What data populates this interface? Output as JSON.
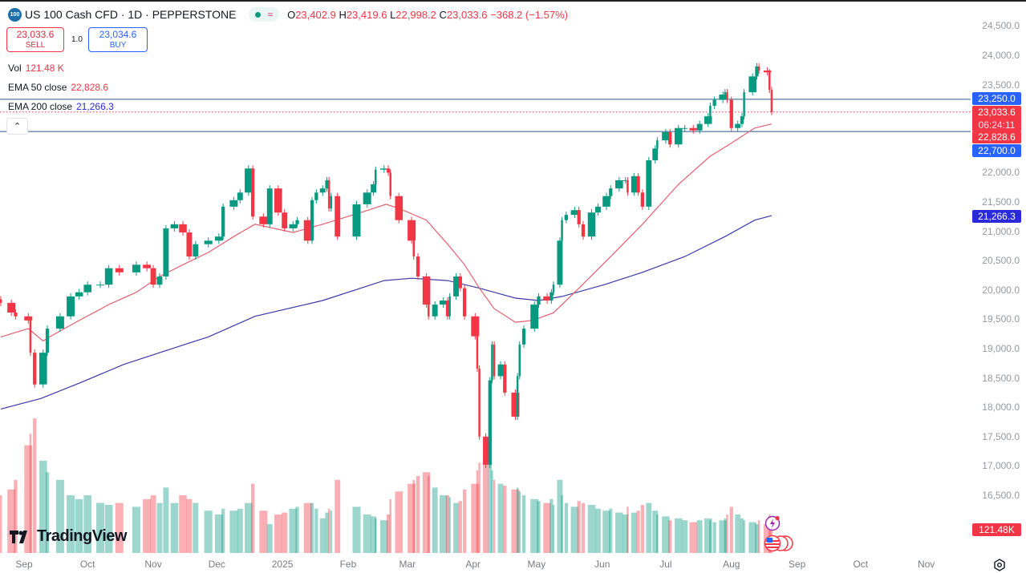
{
  "header": {
    "symbol_badge": "100",
    "title": "US 100 Cash CFD · 1D · PEPPERSTONE",
    "ohlc": {
      "o_label": "O",
      "o": "23,402.9",
      "h_label": "H",
      "h": "23,419.6",
      "l_label": "L",
      "l": "22,998.2",
      "c_label": "C",
      "c": "23,033.6",
      "change": "−368.2 (−1.57%)"
    }
  },
  "trade": {
    "sell_price": "23,033.6",
    "sell_label": "SELL",
    "quantity": "1.0",
    "buy_price": "23,034.6",
    "buy_label": "BUY"
  },
  "indicators": [
    {
      "name": "Vol",
      "value": "121.48 K",
      "color": "#f23645"
    },
    {
      "name": "EMA 50 close",
      "value": "22,828.6",
      "color": "#f23645"
    },
    {
      "name": "EMA 200 close",
      "value": "21,266.3",
      "color": "#2a2adb"
    }
  ],
  "price_axis": {
    "labels": [
      "24,500.0",
      "24,000.0",
      "23,500.0",
      "22,000.0",
      "21,500.0",
      "21,000.0",
      "20,500.0",
      "20,000.0",
      "19,500.0",
      "19,000.0",
      "18,500.0",
      "18,000.0",
      "17,500.0",
      "17,000.0",
      "16,500.0"
    ]
  },
  "price_tags": [
    {
      "text": "23,250.0",
      "price": 23250,
      "color": "#2962ff"
    },
    {
      "text": "23,033.6",
      "sub": "06:24:11",
      "price": 23033.6,
      "color": "#f23645"
    },
    {
      "text": "22,828.6",
      "price": 22828.6,
      "color": "#f23645"
    },
    {
      "text": "22,700.0",
      "price": 22700,
      "color": "#2962ff"
    },
    {
      "text": "21,266.3",
      "price": 21266.3,
      "color": "#2a2adb"
    },
    {
      "text": "121.48K",
      "color": "#f23645"
    }
  ],
  "time_axis": [
    {
      "label": "Sep",
      "date": "2024-09-01"
    },
    {
      "label": "Oct",
      "date": "2024-10-01"
    },
    {
      "label": "Nov",
      "date": "2024-11-01"
    },
    {
      "label": "Dec",
      "date": "2024-12-01"
    },
    {
      "label": "2025",
      "date": "2025-01-01"
    },
    {
      "label": "Feb",
      "date": "2025-02-01"
    },
    {
      "label": "Mar",
      "date": "2025-03-01"
    },
    {
      "label": "Apr",
      "date": "2025-04-01"
    },
    {
      "label": "May",
      "date": "2025-05-01"
    },
    {
      "label": "Jun",
      "date": "2025-06-01"
    },
    {
      "label": "Jul",
      "date": "2025-07-01"
    },
    {
      "label": "Aug",
      "date": "2025-08-01"
    },
    {
      "label": "Sep",
      "date": "2025-09-01"
    },
    {
      "label": "Oct",
      "date": "2025-10-01"
    },
    {
      "label": "Nov",
      "date": "2025-11-01"
    }
  ],
  "branding": {
    "logo_text": "TradingView"
  },
  "colors": {
    "up": "#089981",
    "down": "#f23645",
    "ema50": "#e06070",
    "ema200": "#3a3aa8",
    "hline": "#2a5a8a"
  },
  "chart_data": {
    "type": "candlestick",
    "title": "US 100 Cash CFD · 1D · PEPPERSTONE",
    "ylim": [
      16000,
      24700
    ],
    "y_scale": "linear",
    "grid": false,
    "horizontal_lines": [
      23250,
      22700
    ],
    "last_price_line": 23033.6,
    "closes_and_volume_k": [
      [
        "2024-08-21",
        19780,
        300
      ],
      [
        "2024-08-26",
        19615,
        330
      ],
      [
        "2024-08-28",
        19550,
        380
      ],
      [
        "2024-09-03",
        19480,
        560
      ],
      [
        "2024-09-04",
        18930,
        620
      ],
      [
        "2024-09-06",
        18390,
        700
      ],
      [
        "2024-09-10",
        18930,
        480
      ],
      [
        "2024-09-12",
        19340,
        420
      ],
      [
        "2024-09-18",
        19550,
        380
      ],
      [
        "2024-09-23",
        19890,
        300
      ],
      [
        "2024-09-27",
        19960,
        280
      ],
      [
        "2024-10-01",
        20090,
        300
      ],
      [
        "2024-10-07",
        20090,
        260
      ],
      [
        "2024-10-11",
        20370,
        250
      ],
      [
        "2024-10-16",
        20300,
        260
      ],
      [
        "2024-10-24",
        20430,
        240
      ],
      [
        "2024-10-29",
        20370,
        280
      ],
      [
        "2024-11-01",
        20090,
        300
      ],
      [
        "2024-11-04",
        20230,
        260
      ],
      [
        "2024-11-07",
        21050,
        340
      ],
      [
        "2024-11-11",
        21120,
        260
      ],
      [
        "2024-11-15",
        20980,
        300
      ],
      [
        "2024-11-18",
        20570,
        280
      ],
      [
        "2024-11-21",
        20780,
        260
      ],
      [
        "2024-11-27",
        20840,
        220
      ],
      [
        "2024-12-02",
        20910,
        200
      ],
      [
        "2024-12-04",
        21420,
        230
      ],
      [
        "2024-12-09",
        21530,
        220
      ],
      [
        "2024-12-12",
        21660,
        230
      ],
      [
        "2024-12-16",
        22070,
        260
      ],
      [
        "2024-12-18",
        21250,
        360
      ],
      [
        "2024-12-23",
        21120,
        220
      ],
      [
        "2024-12-26",
        21730,
        150
      ],
      [
        "2024-12-30",
        21320,
        200
      ],
      [
        "2025-01-02",
        21050,
        210
      ],
      [
        "2025-01-06",
        21120,
        230
      ],
      [
        "2025-01-08",
        21190,
        240
      ],
      [
        "2025-01-13",
        20840,
        260
      ],
      [
        "2025-01-15",
        21530,
        260
      ],
      [
        "2025-01-17",
        21660,
        230
      ],
      [
        "2025-01-20",
        21730,
        180
      ],
      [
        "2025-01-22",
        21870,
        210
      ],
      [
        "2025-01-23",
        21390,
        230
      ],
      [
        "2025-01-24",
        21600,
        220
      ],
      [
        "2025-01-27",
        20910,
        380
      ],
      [
        "2025-02-05",
        21460,
        240
      ],
      [
        "2025-02-10",
        21660,
        200
      ],
      [
        "2025-02-13",
        21800,
        190
      ],
      [
        "2025-02-14",
        22050,
        180
      ],
      [
        "2025-02-18",
        22070,
        170
      ],
      [
        "2025-02-20",
        22000,
        200
      ],
      [
        "2025-02-21",
        21600,
        280
      ],
      [
        "2025-02-25",
        21190,
        320
      ],
      [
        "2025-03-03",
        20840,
        360
      ],
      [
        "2025-03-04",
        20570,
        380
      ],
      [
        "2025-03-06",
        20230,
        400
      ],
      [
        "2025-03-10",
        19750,
        420
      ],
      [
        "2025-03-11",
        19550,
        400
      ],
      [
        "2025-03-14",
        19750,
        340
      ],
      [
        "2025-03-18",
        19820,
        300
      ],
      [
        "2025-03-20",
        19550,
        300
      ],
      [
        "2025-03-21",
        19890,
        290
      ],
      [
        "2025-03-24",
        20230,
        260
      ],
      [
        "2025-03-26",
        20030,
        270
      ],
      [
        "2025-03-28",
        19550,
        330
      ],
      [
        "2025-04-02",
        19210,
        360
      ],
      [
        "2025-04-03",
        18660,
        430
      ],
      [
        "2025-04-04",
        17500,
        470
      ],
      [
        "2025-04-07",
        17020,
        500
      ],
      [
        "2025-04-09",
        18460,
        480
      ],
      [
        "2025-04-10",
        19070,
        430
      ],
      [
        "2025-04-11",
        18530,
        380
      ],
      [
        "2025-04-14",
        18730,
        360
      ],
      [
        "2025-04-16",
        18250,
        350
      ],
      [
        "2025-04-21",
        17840,
        330
      ],
      [
        "2025-04-22",
        18530,
        340
      ],
      [
        "2025-04-23",
        19070,
        320
      ],
      [
        "2025-04-25",
        19340,
        300
      ],
      [
        "2025-04-30",
        19750,
        280
      ],
      [
        "2025-05-02",
        19890,
        270
      ],
      [
        "2025-05-06",
        19820,
        260
      ],
      [
        "2025-05-08",
        19960,
        280
      ],
      [
        "2025-05-09",
        20090,
        250
      ],
      [
        "2025-05-12",
        20840,
        380
      ],
      [
        "2025-05-13",
        21190,
        300
      ],
      [
        "2025-05-15",
        21280,
        260
      ],
      [
        "2025-05-19",
        21360,
        240
      ],
      [
        "2025-05-21",
        21120,
        270
      ],
      [
        "2025-05-23",
        20910,
        260
      ],
      [
        "2025-05-27",
        21320,
        250
      ],
      [
        "2025-05-30",
        21420,
        230
      ],
      [
        "2025-06-03",
        21600,
        220
      ],
      [
        "2025-06-05",
        21730,
        230
      ],
      [
        "2025-06-09",
        21870,
        210
      ],
      [
        "2025-06-12",
        21870,
        200
      ],
      [
        "2025-06-13",
        21660,
        240
      ],
      [
        "2025-06-16",
        21940,
        210
      ],
      [
        "2025-06-18",
        21660,
        220
      ],
      [
        "2025-06-20",
        21420,
        250
      ],
      [
        "2025-06-23",
        22210,
        260
      ],
      [
        "2025-06-26",
        22410,
        220
      ],
      [
        "2025-06-27",
        22550,
        200
      ],
      [
        "2025-07-01",
        22690,
        190
      ],
      [
        "2025-07-03",
        22480,
        170
      ],
      [
        "2025-07-07",
        22760,
        180
      ],
      [
        "2025-07-10",
        22760,
        170
      ],
      [
        "2025-07-14",
        22720,
        160
      ],
      [
        "2025-07-17",
        22830,
        170
      ],
      [
        "2025-07-21",
        22960,
        180
      ],
      [
        "2025-07-22",
        23140,
        170
      ],
      [
        "2025-07-24",
        23240,
        160
      ],
      [
        "2025-07-28",
        23330,
        170
      ],
      [
        "2025-07-29",
        23370,
        180
      ],
      [
        "2025-07-30",
        23240,
        200
      ],
      [
        "2025-08-01",
        22760,
        240
      ],
      [
        "2025-08-04",
        22830,
        200
      ],
      [
        "2025-08-06",
        22960,
        180
      ],
      [
        "2025-08-07",
        23370,
        170
      ],
      [
        "2025-08-11",
        23640,
        160
      ],
      [
        "2025-08-13",
        23810,
        150
      ],
      [
        "2025-08-14",
        23740,
        170
      ],
      [
        "2025-08-18",
        23710,
        150
      ],
      [
        "2025-08-19",
        23410,
        200
      ],
      [
        "2025-08-20",
        23033.6,
        121.48
      ]
    ],
    "ema50": [
      [
        "2024-08-21",
        19200
      ],
      [
        "2024-09-03",
        19340
      ],
      [
        "2024-09-10",
        19130
      ],
      [
        "2024-09-13",
        19200
      ],
      [
        "2024-09-27",
        19480
      ],
      [
        "2024-10-11",
        19750
      ],
      [
        "2024-10-24",
        19960
      ],
      [
        "2024-11-04",
        20230
      ],
      [
        "2024-11-15",
        20430
      ],
      [
        "2024-11-27",
        20640
      ],
      [
        "2024-12-09",
        20910
      ],
      [
        "2024-12-19",
        21120
      ],
      [
        "2025-01-06",
        20980
      ],
      [
        "2025-01-20",
        21120
      ],
      [
        "2025-02-07",
        21320
      ],
      [
        "2025-02-19",
        21460
      ],
      [
        "2025-02-25",
        21390
      ],
      [
        "2025-03-10",
        21190
      ],
      [
        "2025-03-20",
        20780
      ],
      [
        "2025-03-28",
        20430
      ],
      [
        "2025-04-04",
        20030
      ],
      [
        "2025-04-11",
        19680
      ],
      [
        "2025-04-21",
        19450
      ],
      [
        "2025-04-29",
        19480
      ],
      [
        "2025-05-09",
        19610
      ],
      [
        "2025-05-21",
        20030
      ],
      [
        "2025-06-05",
        20570
      ],
      [
        "2025-06-20",
        21120
      ],
      [
        "2025-07-07",
        21800
      ],
      [
        "2025-07-22",
        22280
      ],
      [
        "2025-07-31",
        22480
      ],
      [
        "2025-08-12",
        22760
      ],
      [
        "2025-08-20",
        22828.6
      ]
    ],
    "ema200": [
      [
        "2024-08-21",
        17970
      ],
      [
        "2024-09-09",
        18150
      ],
      [
        "2024-09-27",
        18410
      ],
      [
        "2024-10-18",
        18730
      ],
      [
        "2024-11-04",
        18930
      ],
      [
        "2024-11-27",
        19200
      ],
      [
        "2024-12-19",
        19550
      ],
      [
        "2025-01-20",
        19820
      ],
      [
        "2025-02-07",
        20030
      ],
      [
        "2025-02-18",
        20160
      ],
      [
        "2025-03-03",
        20200
      ],
      [
        "2025-03-20",
        20160
      ],
      [
        "2025-04-04",
        20030
      ],
      [
        "2025-04-21",
        19860
      ],
      [
        "2025-05-02",
        19820
      ],
      [
        "2025-05-13",
        19890
      ],
      [
        "2025-06-02",
        20090
      ],
      [
        "2025-06-20",
        20300
      ],
      [
        "2025-07-10",
        20570
      ],
      [
        "2025-07-29",
        20910
      ],
      [
        "2025-08-12",
        21190
      ],
      [
        "2025-08-20",
        21266.3
      ]
    ]
  }
}
